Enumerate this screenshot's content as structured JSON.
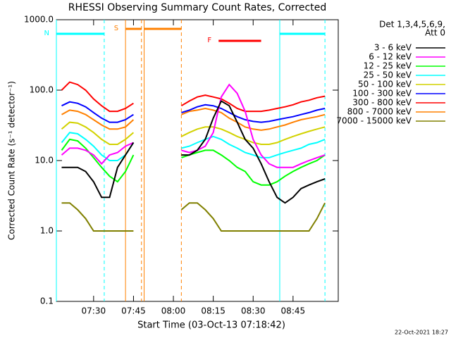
{
  "chart_data": {
    "type": "line",
    "title": "RHESSI Observing Summary Count Rates, Corrected",
    "xlabel": "Start Time (03-Oct-13 07:18:42)",
    "ylabel": "Corrected Count Rate (s⁻¹ detector⁻¹)",
    "legend_title": [
      "Det 1,3,4,5,6,9,",
      "Att 0"
    ],
    "footer": "22-Oct-2021 18:27",
    "log_y": true,
    "ylim": [
      0.1,
      1000
    ],
    "yticks": [
      0.1,
      {
        "value": 1,
        "label": "1.0"
      },
      {
        "value": 10,
        "label": "10.0"
      },
      {
        "value": 100,
        "label": "100.0"
      },
      {
        "value": 1000,
        "label": "1000.0"
      }
    ],
    "xlim": [
      "07:16",
      "09:02"
    ],
    "xticks": [
      "07:30",
      "07:45",
      "08:00",
      "08:15",
      "08:30",
      "08:45"
    ],
    "x": [
      "07:18",
      "07:21",
      "07:24",
      "07:27",
      "07:30",
      "07:33",
      "07:36",
      "07:39",
      "07:42",
      "07:45",
      "07:55",
      "08:03",
      "08:06",
      "08:09",
      "08:12",
      "08:15",
      "08:18",
      "08:21",
      "08:24",
      "08:27",
      "08:30",
      "08:33",
      "08:36",
      "08:39",
      "08:42",
      "08:45",
      "08:48",
      "08:51",
      "08:54",
      "08:57"
    ],
    "series": [
      {
        "name": "3 - 6 keV",
        "color": "#000000",
        "values": [
          8,
          8,
          8,
          7,
          5,
          3,
          3,
          8,
          12,
          18,
          null,
          12,
          12,
          14,
          20,
          40,
          70,
          60,
          35,
          20,
          15,
          9,
          5,
          3,
          2.5,
          3,
          4,
          4.5,
          5,
          5.5
        ]
      },
      {
        "name": "6 - 12 keV",
        "color": "#ff00ff",
        "values": [
          12,
          15,
          15,
          14,
          12,
          9,
          12,
          13,
          16,
          18,
          null,
          14,
          13,
          14,
          16,
          25,
          80,
          120,
          90,
          50,
          20,
          12,
          9,
          8,
          8,
          8,
          9,
          10,
          11,
          12
        ]
      },
      {
        "name": "12 - 25 keV",
        "color": "#00ff00",
        "values": [
          14,
          20,
          19,
          15,
          11,
          8,
          6,
          5,
          7,
          12,
          null,
          11,
          12,
          13,
          14,
          14,
          12,
          10,
          8,
          7,
          5,
          4.5,
          4.5,
          5,
          6,
          7,
          8,
          9,
          10,
          12
        ]
      },
      {
        "name": "25 - 50 keV",
        "color": "#00ffff",
        "values": [
          18,
          25,
          24,
          20,
          16,
          12,
          10,
          10,
          12,
          18,
          null,
          15,
          16,
          18,
          20,
          22,
          20,
          17,
          15,
          13,
          12,
          11,
          11,
          12,
          13,
          14,
          15,
          17,
          18,
          20
        ]
      },
      {
        "name": "50 - 100 keV",
        "color": "#d2d200",
        "values": [
          28,
          35,
          34,
          30,
          25,
          20,
          17,
          17,
          20,
          25,
          null,
          22,
          25,
          28,
          30,
          30,
          28,
          25,
          22,
          20,
          18,
          17,
          17,
          18,
          20,
          22,
          24,
          26,
          28,
          30
        ]
      },
      {
        "name": "100 - 300 keV",
        "color": "#0000ff",
        "values": [
          60,
          68,
          65,
          58,
          48,
          40,
          35,
          35,
          38,
          45,
          null,
          48,
          52,
          58,
          62,
          60,
          55,
          48,
          42,
          38,
          36,
          35,
          36,
          38,
          40,
          42,
          45,
          48,
          52,
          55
        ]
      },
      {
        "name": "300 - 800 keV",
        "color": "#ff0000",
        "values": [
          100,
          130,
          120,
          100,
          75,
          60,
          50,
          50,
          55,
          65,
          null,
          60,
          70,
          80,
          85,
          80,
          75,
          65,
          55,
          50,
          50,
          50,
          52,
          55,
          58,
          62,
          68,
          72,
          78,
          82
        ]
      },
      {
        "name": "800 - 7000 keV",
        "color": "#ff8000",
        "values": [
          45,
          52,
          50,
          45,
          38,
          32,
          28,
          28,
          30,
          38,
          null,
          45,
          50,
          52,
          55,
          52,
          48,
          40,
          35,
          30,
          28,
          27,
          28,
          30,
          32,
          35,
          38,
          40,
          42,
          45
        ]
      },
      {
        "name": "7000 - 15000 keV",
        "color": "#808000",
        "values": [
          2.5,
          2.5,
          2,
          1.5,
          1,
          1,
          1,
          1,
          1,
          1,
          null,
          2,
          2.5,
          2.5,
          2,
          1.5,
          1,
          1,
          1,
          1,
          1,
          1,
          1,
          1,
          1,
          1,
          1,
          1,
          1.5,
          2.5
        ]
      }
    ],
    "markers": [
      {
        "label": "N",
        "color": "#00ffff",
        "lines": true,
        "intervals": [
          [
            "07:16",
            "07:34"
          ],
          [
            "08:40",
            "08:57"
          ]
        ]
      },
      {
        "label": "S",
        "color": "#ff8000",
        "lines": true,
        "intervals": [
          [
            "07:42",
            "07:48"
          ],
          [
            "07:49",
            "08:03"
          ]
        ]
      },
      {
        "label": "F",
        "color": "#ff0000",
        "lines": false,
        "intervals": [
          [
            "08:17",
            "08:33"
          ]
        ]
      }
    ]
  }
}
